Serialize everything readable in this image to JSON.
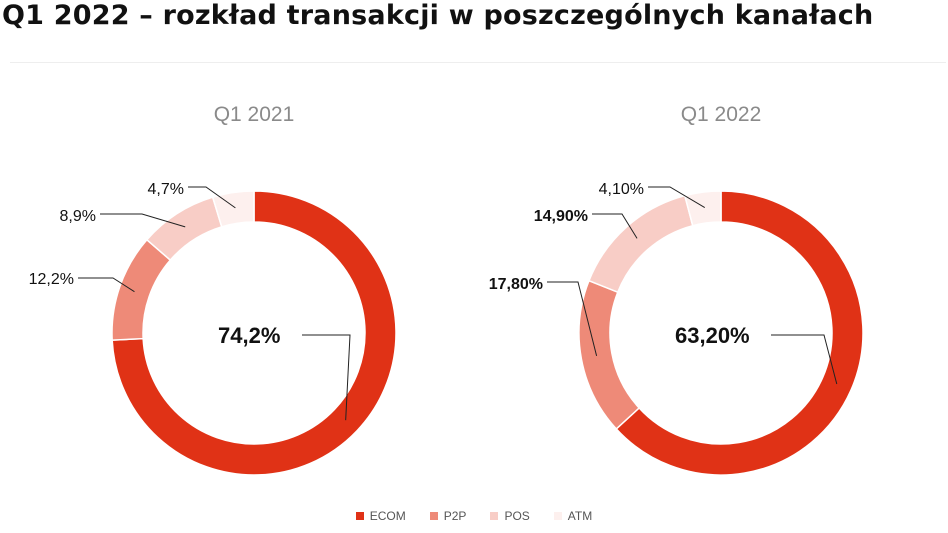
{
  "page": {
    "title": "Q1 2022 –  rozkład transakcji w poszczególnych kanałach"
  },
  "chart_data": [
    {
      "type": "pie",
      "variant": "donut",
      "title": "Q1 2021",
      "categories": [
        "ECOM",
        "P2P",
        "POS",
        "ATM"
      ],
      "values": [
        74.2,
        12.2,
        8.9,
        4.7
      ],
      "labels": [
        "74,2%",
        "12,2%",
        "8,9%",
        "4,7%"
      ],
      "colors": [
        "#e03216",
        "#ee8a78",
        "#f8cdc6",
        "#fdf0ee"
      ]
    },
    {
      "type": "pie",
      "variant": "donut",
      "title": "Q1 2022",
      "categories": [
        "ECOM",
        "P2P",
        "POS",
        "ATM"
      ],
      "values": [
        63.2,
        17.8,
        14.9,
        4.1
      ],
      "labels": [
        "63,20%",
        "17,80%",
        "14,90%",
        "4,10%"
      ],
      "colors": [
        "#e03216",
        "#ee8a78",
        "#f8cdc6",
        "#fdf0ee"
      ]
    }
  ],
  "legend": {
    "placement": "bottom",
    "items": [
      {
        "label": "ECOM",
        "color": "#e03216"
      },
      {
        "label": "P2P",
        "color": "#ee8a78"
      },
      {
        "label": "POS",
        "color": "#f8cdc6"
      },
      {
        "label": "ATM",
        "color": "#fdf0ee"
      }
    ]
  }
}
